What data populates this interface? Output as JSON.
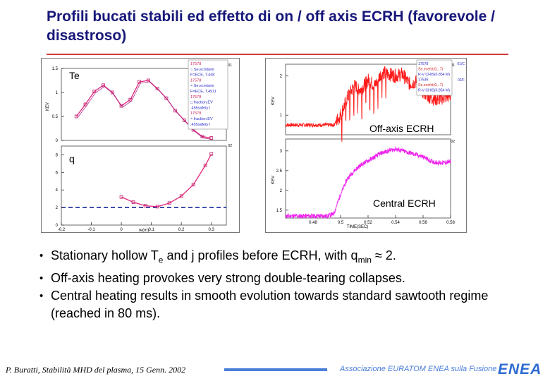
{
  "slide": {
    "title": "Profili bucati stabili ed effetto di on / off axis ECRH (favorevole / disastroso)"
  },
  "left_plot": {
    "te_label": "Te",
    "q_label": "q",
    "te_axis_ticks": [
      "1.5",
      "1",
      "0.5",
      "0"
    ],
    "te_axis_label": "KEV",
    "q_axis_ticks": [
      "8",
      "6",
      "4",
      "2",
      "0"
    ],
    "x_ticks": [
      "-0.2",
      "-0.1",
      "0",
      "0.1",
      "0.2",
      "0.3"
    ],
    "x_label": "re(m)",
    "panel_tags": [
      "01",
      "02"
    ],
    "legend": [
      "17578",
      "○ Se.ecmtwm",
      "F=ECE, T.448",
      "17578",
      "× Se.ecmtwm",
      "F=ECE, T.4911",
      "17578",
      "□ fraction.EV",
      ".455safety  I",
      "17578",
      "× fraction.EV",
      ".455safety  I"
    ]
  },
  "right_plot": {
    "off_axis_label": "Off-axis ECRH",
    "central_label": "Central ECRH",
    "top_y_ticks": [
      "2",
      "1"
    ],
    "top_y_axis_label": "KEV",
    "bottom_y_ticks": [
      "3",
      "2.5",
      "2",
      "1.5"
    ],
    "bottom_y_axis_label": "KEV",
    "x_ticks": [
      "0.48",
      "0.5",
      "0.52",
      "0.54",
      "0.56",
      "0.58"
    ],
    "x_label": "TIME(SEC)",
    "panel_tags": [
      "01",
      "02"
    ],
    "legend_top": [
      "17578",
      "Se.ecefct(0,..7)",
      "R-V CHIS(0.854 M)",
      "17536",
      "Se.ecefct(0,..7)",
      "R-V CHIS(0.854 M)"
    ],
    "legend_top_tags": [
      "01/C",
      "02/F"
    ],
    "series_colors": {
      "off_axis": "#ff1a1a",
      "central": "#ee22ee"
    }
  },
  "chart_data": [
    {
      "type": "line",
      "title": "",
      "xlabel": "re(m)",
      "ylabel": "KEV",
      "xlim": [
        -0.2,
        0.35
      ],
      "ylim": [
        0,
        1.5
      ],
      "series": [
        {
          "x": [
            -0.15,
            -0.12,
            -0.09,
            -0.06,
            -0.03,
            0.0,
            0.03,
            0.06,
            0.09,
            0.12,
            0.15,
            0.18,
            0.21,
            0.24,
            0.27,
            0.3
          ],
          "y": [
            0.5,
            0.75,
            1.02,
            1.15,
            1.0,
            0.72,
            0.85,
            1.22,
            1.25,
            1.08,
            0.88,
            0.62,
            0.42,
            0.22,
            0.08,
            0.05
          ]
        }
      ]
    },
    {
      "type": "line",
      "title": "",
      "xlabel": "re(m)",
      "ylabel": "",
      "xlim": [
        -0.2,
        0.35
      ],
      "ylim": [
        0,
        9
      ],
      "series": [
        {
          "x": [
            0.0,
            0.04,
            0.08,
            0.12,
            0.16,
            0.2,
            0.24,
            0.28,
            0.3
          ],
          "y": [
            3.2,
            2.6,
            2.2,
            2.1,
            2.5,
            3.3,
            4.6,
            6.8,
            8.1
          ]
        }
      ]
    },
    {
      "type": "line",
      "title": "",
      "xlabel": "",
      "ylabel": "KEV",
      "xlim": [
        0.46,
        0.58
      ],
      "ylim": [
        0.5,
        2.3
      ],
      "series": [
        {
          "x": [
            0.46,
            0.48,
            0.495,
            0.5,
            0.505,
            0.51,
            0.515,
            0.52,
            0.525,
            0.53,
            0.535,
            0.54,
            0.545,
            0.55,
            0.555,
            0.56,
            0.565,
            0.57,
            0.575,
            0.58
          ],
          "y": [
            0.75,
            0.75,
            0.75,
            1.0,
            1.45,
            1.75,
            1.65,
            1.9,
            1.75,
            2.1,
            2.05,
            2.0,
            2.05,
            1.8,
            1.85,
            1.6,
            1.45,
            1.4,
            1.45,
            1.5
          ]
        }
      ]
    },
    {
      "type": "line",
      "title": "",
      "xlabel": "TIME(SEC)",
      "ylabel": "KEV",
      "xlim": [
        0.46,
        0.58
      ],
      "ylim": [
        1.3,
        3.3
      ],
      "series": [
        {
          "x": [
            0.46,
            0.48,
            0.49,
            0.495,
            0.5,
            0.505,
            0.51,
            0.515,
            0.52,
            0.525,
            0.53,
            0.535,
            0.54,
            0.545,
            0.55,
            0.555,
            0.56,
            0.565,
            0.57,
            0.575,
            0.58
          ],
          "y": [
            1.35,
            1.35,
            1.35,
            1.4,
            1.9,
            2.3,
            2.5,
            2.65,
            2.75,
            2.85,
            2.95,
            3.0,
            3.05,
            3.0,
            2.95,
            2.9,
            2.85,
            2.75,
            2.7,
            2.7,
            2.72
          ]
        }
      ]
    }
  ],
  "bullets": [
    {
      "pre": "Stationary hollow T",
      "sub": "e",
      "post": " and j profiles before ECRH, with q",
      "sub2": "min",
      "post2": " ≈ 2."
    },
    {
      "pre": "Off-axis heating provokes very strong double-tearing collapses.",
      "sub": "",
      "post": "",
      "sub2": "",
      "post2": ""
    },
    {
      "pre": "Central heating results in smooth evolution towards standard sawtooth regime (reached in 80 ms).",
      "sub": "",
      "post": "",
      "sub2": "",
      "post2": ""
    }
  ],
  "footer": {
    "author": "P. Buratti, Stabilità MHD del plasma, 15 Genn. 2002",
    "association": "Associazione EURATOM ENEA sulla Fusione",
    "logo": "ENEA"
  }
}
